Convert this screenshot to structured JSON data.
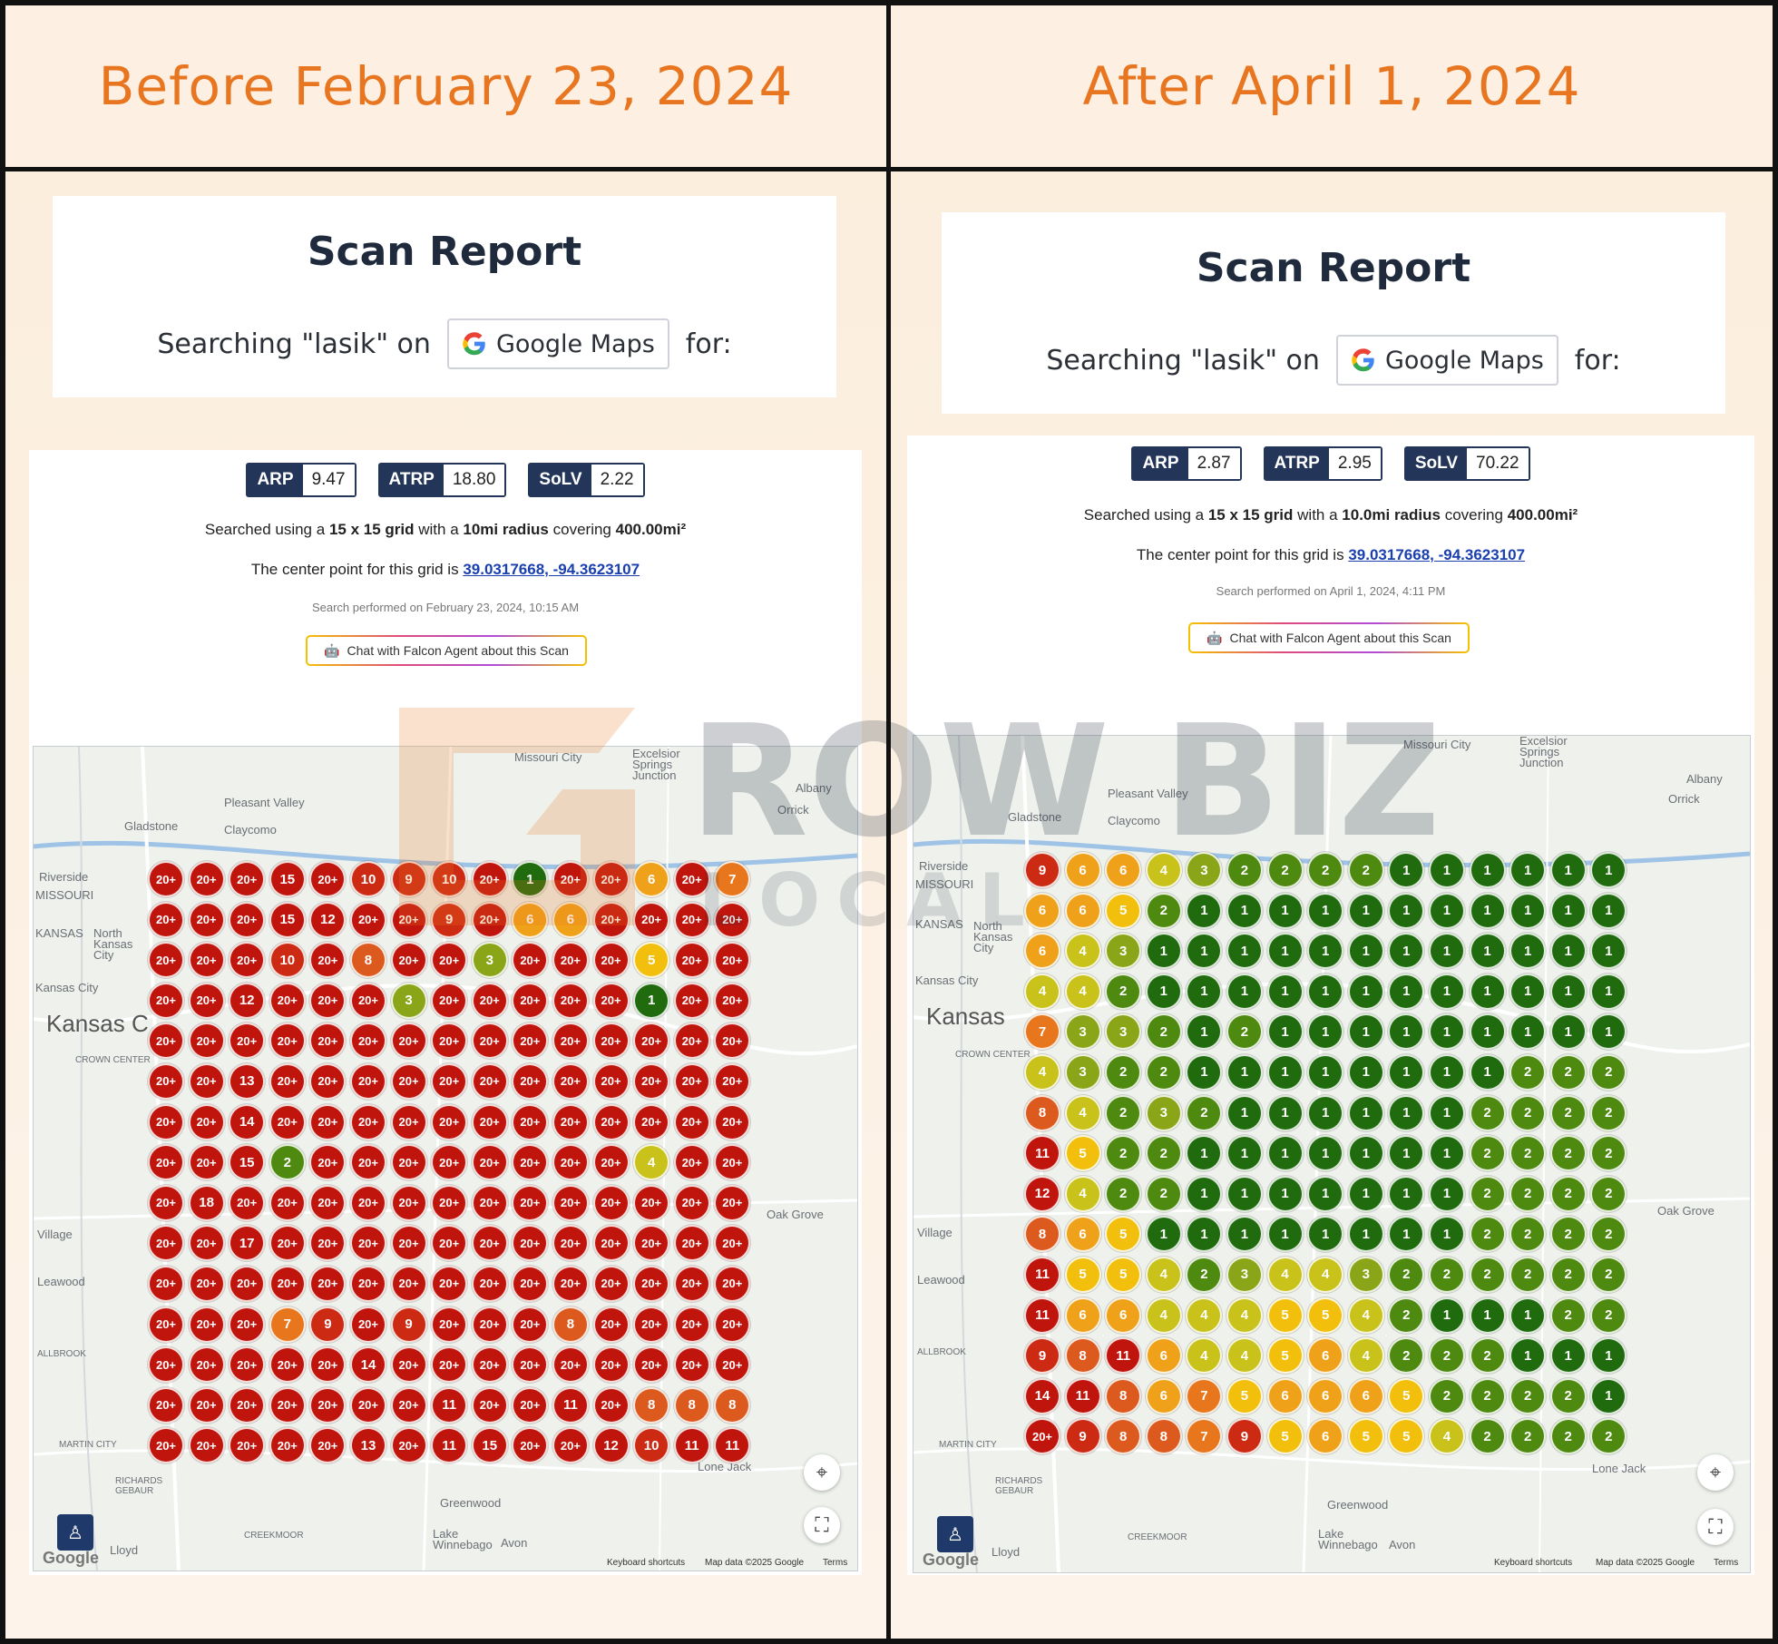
{
  "headings": {
    "left": "Before February 23, 2024",
    "right": "After April 1, 2024"
  },
  "colors": {
    "heading": "#e8751f",
    "metric_dark": "#24355a",
    "rank_red": "#c0150d",
    "rank_green": "#1f6b0d"
  },
  "watermark": {
    "line1": "ROW BIZ",
    "line2": "LOCAL"
  },
  "before": {
    "report_title": "Scan Report",
    "search_prefix": "Searching \"lasik\" on",
    "platform": "Google Maps",
    "search_suffix": "for:",
    "metrics": [
      {
        "key": "ARP",
        "value": "9.47"
      },
      {
        "key": "ATRP",
        "value": "18.80"
      },
      {
        "key": "SoLV",
        "value": "2.22"
      }
    ],
    "grid_info": {
      "pre": "Searched using a",
      "size": "15 x 15 grid",
      "mid": "with a",
      "radius": "10mi radius",
      "covering": "covering",
      "area": "400.00mi²"
    },
    "center": {
      "text": "The center point for this grid is",
      "coords": "39.0317668, -94.3623107"
    },
    "performed": "Search performed on February 23, 2024, 10:15 AM",
    "chat": "Chat with Falcon Agent about this Scan",
    "grid": [
      [
        "20+",
        "20+",
        "20+",
        "15",
        "20+",
        "10",
        "9",
        "10",
        "20+",
        "1",
        "20+",
        "20+",
        "6",
        "20+",
        "7"
      ],
      [
        "20+",
        "20+",
        "20+",
        "15",
        "12",
        "20+",
        "20+",
        "9",
        "20+",
        "6",
        "6",
        "20+",
        "20+",
        "20+",
        "20+"
      ],
      [
        "20+",
        "20+",
        "20+",
        "10",
        "20+",
        "8",
        "20+",
        "20+",
        "3",
        "20+",
        "20+",
        "20+",
        "5",
        "20+",
        "20+"
      ],
      [
        "20+",
        "20+",
        "12",
        "20+",
        "20+",
        "20+",
        "3",
        "20+",
        "20+",
        "20+",
        "20+",
        "20+",
        "1",
        "20+",
        "20+"
      ],
      [
        "20+",
        "20+",
        "20+",
        "20+",
        "20+",
        "20+",
        "20+",
        "20+",
        "20+",
        "20+",
        "20+",
        "20+",
        "20+",
        "20+",
        "20+"
      ],
      [
        "20+",
        "20+",
        "13",
        "20+",
        "20+",
        "20+",
        "20+",
        "20+",
        "20+",
        "20+",
        "20+",
        "20+",
        "20+",
        "20+",
        "20+"
      ],
      [
        "20+",
        "20+",
        "14",
        "20+",
        "20+",
        "20+",
        "20+",
        "20+",
        "20+",
        "20+",
        "20+",
        "20+",
        "20+",
        "20+",
        "20+"
      ],
      [
        "20+",
        "20+",
        "15",
        "2",
        "20+",
        "20+",
        "20+",
        "20+",
        "20+",
        "20+",
        "20+",
        "20+",
        "4",
        "20+",
        "20+"
      ],
      [
        "20+",
        "18",
        "20+",
        "20+",
        "20+",
        "20+",
        "20+",
        "20+",
        "20+",
        "20+",
        "20+",
        "20+",
        "20+",
        "20+",
        "20+"
      ],
      [
        "20+",
        "20+",
        "17",
        "20+",
        "20+",
        "20+",
        "20+",
        "20+",
        "20+",
        "20+",
        "20+",
        "20+",
        "20+",
        "20+",
        "20+"
      ],
      [
        "20+",
        "20+",
        "20+",
        "20+",
        "20+",
        "20+",
        "20+",
        "20+",
        "20+",
        "20+",
        "20+",
        "20+",
        "20+",
        "20+",
        "20+"
      ],
      [
        "20+",
        "20+",
        "20+",
        "7",
        "9",
        "20+",
        "9",
        "20+",
        "20+",
        "20+",
        "8",
        "20+",
        "20+",
        "20+",
        "20+"
      ],
      [
        "20+",
        "20+",
        "20+",
        "20+",
        "20+",
        "14",
        "20+",
        "20+",
        "20+",
        "20+",
        "20+",
        "20+",
        "20+",
        "20+",
        "20+"
      ],
      [
        "20+",
        "20+",
        "20+",
        "20+",
        "20+",
        "20+",
        "20+",
        "11",
        "20+",
        "20+",
        "11",
        "20+",
        "8",
        "8",
        "8"
      ],
      [
        "20+",
        "20+",
        "20+",
        "20+",
        "20+",
        "13",
        "20+",
        "11",
        "15",
        "20+",
        "20+",
        "12",
        "10",
        "11",
        "11"
      ]
    ],
    "map_labels": [
      {
        "t": "Missouri City"
      },
      {
        "t": "Excelsior Springs Junction"
      },
      {
        "t": "Pleasant Valley"
      },
      {
        "t": "Gladstone"
      },
      {
        "t": "Claycomo"
      },
      {
        "t": "Albany"
      },
      {
        "t": "Orrick"
      },
      {
        "t": "Riverside"
      },
      {
        "t": "MISSOURI"
      },
      {
        "t": "KANSAS"
      },
      {
        "t": "North Kansas City"
      },
      {
        "t": "Kansas City"
      },
      {
        "t": "Kansas C"
      },
      {
        "t": "CROWN CENTER"
      },
      {
        "t": "Oak Grove"
      },
      {
        "t": "Village"
      },
      {
        "t": "Leawood"
      },
      {
        "t": "ALLBROOK"
      },
      {
        "t": "MARTIN CITY"
      },
      {
        "t": "RICHARDS GEBAUR"
      },
      {
        "t": "Greenwood"
      },
      {
        "t": "CREEKMOOR"
      },
      {
        "t": "Lake Winnebago"
      },
      {
        "t": "Avon"
      },
      {
        "t": "Lone Jack"
      },
      {
        "t": "Lloyd"
      }
    ],
    "attribution": {
      "shortcuts": "Keyboard shortcuts",
      "data": "Map data ©2025 Google",
      "terms": "Terms",
      "logo": "Google"
    }
  },
  "after": {
    "report_title": "Scan Report",
    "search_prefix": "Searching \"lasik\" on",
    "platform": "Google Maps",
    "search_suffix": "for:",
    "metrics": [
      {
        "key": "ARP",
        "value": "2.87"
      },
      {
        "key": "ATRP",
        "value": "2.95"
      },
      {
        "key": "SoLV",
        "value": "70.22"
      }
    ],
    "grid_info": {
      "pre": "Searched using a",
      "size": "15 x 15 grid",
      "mid": "with a",
      "radius": "10.0mi radius",
      "covering": "covering",
      "area": "400.00mi²"
    },
    "center": {
      "text": "The center point for this grid is",
      "coords": "39.0317668, -94.3623107"
    },
    "performed": "Search performed on April 1, 2024, 4:11 PM",
    "chat": "Chat with Falcon Agent about this Scan",
    "grid": [
      [
        "9",
        "6",
        "6",
        "4",
        "3",
        "2",
        "2",
        "2",
        "2",
        "1",
        "1",
        "1",
        "1",
        "1",
        "1"
      ],
      [
        "6",
        "6",
        "5",
        "2",
        "1",
        "1",
        "1",
        "1",
        "1",
        "1",
        "1",
        "1",
        "1",
        "1",
        "1"
      ],
      [
        "6",
        "4",
        "3",
        "1",
        "1",
        "1",
        "1",
        "1",
        "1",
        "1",
        "1",
        "1",
        "1",
        "1",
        "1"
      ],
      [
        "4",
        "4",
        "2",
        "1",
        "1",
        "1",
        "1",
        "1",
        "1",
        "1",
        "1",
        "1",
        "1",
        "1",
        "1"
      ],
      [
        "7",
        "3",
        "3",
        "2",
        "1",
        "2",
        "1",
        "1",
        "1",
        "1",
        "1",
        "1",
        "1",
        "1",
        "1"
      ],
      [
        "4",
        "3",
        "2",
        "2",
        "1",
        "1",
        "1",
        "1",
        "1",
        "1",
        "1",
        "1",
        "2",
        "2",
        "2"
      ],
      [
        "8",
        "4",
        "2",
        "3",
        "2",
        "1",
        "1",
        "1",
        "1",
        "1",
        "1",
        "2",
        "2",
        "2",
        "2"
      ],
      [
        "11",
        "5",
        "2",
        "2",
        "1",
        "1",
        "1",
        "1",
        "1",
        "1",
        "1",
        "2",
        "2",
        "2",
        "2"
      ],
      [
        "12",
        "4",
        "2",
        "2",
        "1",
        "1",
        "1",
        "1",
        "1",
        "1",
        "1",
        "2",
        "2",
        "2",
        "2"
      ],
      [
        "8",
        "6",
        "5",
        "1",
        "1",
        "1",
        "1",
        "1",
        "1",
        "1",
        "1",
        "2",
        "2",
        "2",
        "2"
      ],
      [
        "11",
        "5",
        "5",
        "4",
        "2",
        "3",
        "4",
        "4",
        "3",
        "2",
        "2",
        "2",
        "2",
        "2",
        "2"
      ],
      [
        "11",
        "6",
        "6",
        "4",
        "4",
        "4",
        "5",
        "5",
        "4",
        "2",
        "1",
        "1",
        "1",
        "2",
        "2"
      ],
      [
        "9",
        "8",
        "11",
        "6",
        "4",
        "4",
        "5",
        "6",
        "4",
        "2",
        "2",
        "2",
        "1",
        "1",
        "1"
      ],
      [
        "14",
        "11",
        "8",
        "6",
        "7",
        "5",
        "6",
        "6",
        "6",
        "5",
        "2",
        "2",
        "2",
        "2",
        "1"
      ],
      [
        "20+",
        "9",
        "8",
        "8",
        "7",
        "9",
        "5",
        "6",
        "5",
        "5",
        "4",
        "2",
        "2",
        "2",
        "2"
      ]
    ],
    "map_labels": [
      {
        "t": "Missouri City"
      },
      {
        "t": "Excelsior Springs Junction"
      },
      {
        "t": "Pleasant Valley"
      },
      {
        "t": "Gladstone"
      },
      {
        "t": "Claycomo"
      },
      {
        "t": "Albany"
      },
      {
        "t": "Orrick"
      },
      {
        "t": "Riverside"
      },
      {
        "t": "MISSOURI"
      },
      {
        "t": "KANSAS"
      },
      {
        "t": "North Kansas City"
      },
      {
        "t": "Kansas City"
      },
      {
        "t": "Kansas"
      },
      {
        "t": "CROWN CENTER"
      },
      {
        "t": "Oak Grove"
      },
      {
        "t": "Village"
      },
      {
        "t": "Leawood"
      },
      {
        "t": "ALLBROOK"
      },
      {
        "t": "MARTIN CITY"
      },
      {
        "t": "RICHARDS GEBAUR"
      },
      {
        "t": "Greenwood"
      },
      {
        "t": "CREEKMOOR"
      },
      {
        "t": "Lake Winnebago"
      },
      {
        "t": "Avon"
      },
      {
        "t": "Lone Jack"
      },
      {
        "t": "Lloyd"
      }
    ],
    "attribution": {
      "shortcuts": "Keyboard shortcuts",
      "data": "Map data ©2025 Google",
      "terms": "Terms",
      "logo": "Google"
    }
  }
}
